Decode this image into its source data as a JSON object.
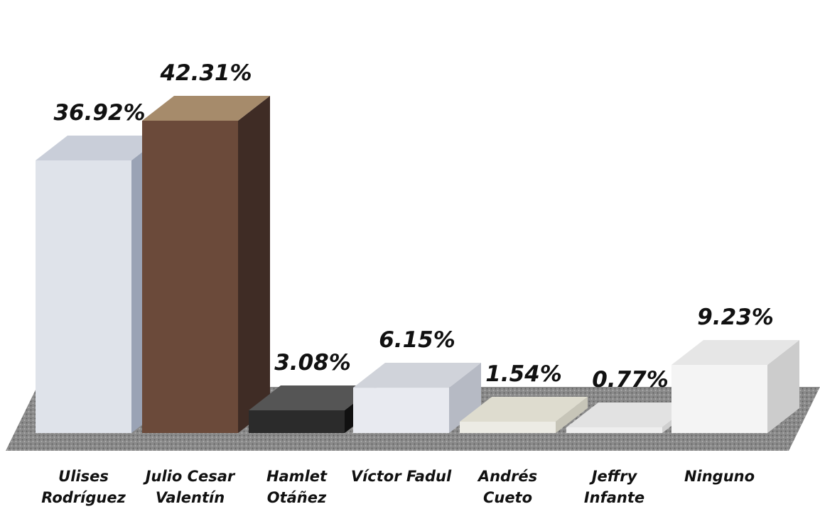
{
  "chart_data": {
    "type": "bar3d",
    "categories": [
      "Ulises Rodríguez",
      "Julio Cesar Valentín",
      "Hamlet Otáñez",
      "Víctor Fadul",
      "Andrés Cueto",
      "Jeffry Infante",
      "Ninguno"
    ],
    "values": [
      36.92,
      42.31,
      3.08,
      6.15,
      1.54,
      0.77,
      9.23
    ],
    "value_labels": [
      "36.92%",
      "42.31%",
      "3.08%",
      "6.15%",
      "1.54%",
      "0.77%",
      "9.23%"
    ]
  }
}
